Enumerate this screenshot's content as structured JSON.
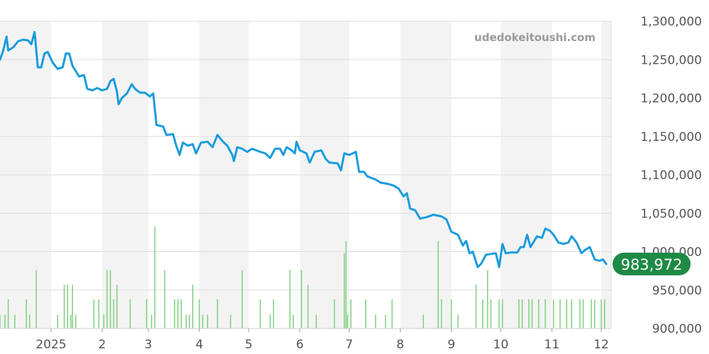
{
  "watermark": "udedokeitoushi.com",
  "current_price_label": "983,972",
  "colors": {
    "line": "#1a9bdc",
    "volume": "#7fcf7f",
    "badge": "#1d8a45",
    "band": "#f3f3f3",
    "grid": "#dddddd"
  },
  "chart_data": {
    "type": "line",
    "title": "",
    "xlabel": "",
    "ylabel": "",
    "ylim": [
      900000,
      1300000
    ],
    "y_ticks": [
      "1,300,000",
      "1,250,000",
      "1,200,000",
      "1,150,000",
      "1,100,000",
      "1,050,000",
      "1,000,000",
      "950,000",
      "900,000"
    ],
    "y_tick_values": [
      1300000,
      1250000,
      1200000,
      1150000,
      1100000,
      1050000,
      1000000,
      950000,
      900000
    ],
    "x_ticks": [
      "2025",
      "2",
      "3",
      "4",
      "5",
      "6",
      "7",
      "8",
      "9",
      "10",
      "11",
      "12"
    ],
    "x_tick_dates": [
      "2025-01-01",
      "2025-02-01",
      "2025-03-01",
      "2025-04-01",
      "2025-05-01",
      "2025-06-01",
      "2025-07-01",
      "2025-08-01",
      "2025-09-01",
      "2025-10-01",
      "2025-11-01",
      "2025-12-01"
    ],
    "x_range": [
      "2024-12-01",
      "2025-12-07"
    ],
    "month_bands": true,
    "grid": true,
    "series": [
      {
        "values": [
          [
            "2024-12-01",
            1250000
          ],
          [
            "2024-12-03",
            1262000
          ],
          [
            "2024-12-05",
            1280000
          ],
          [
            "2024-12-06",
            1262000
          ],
          [
            "2024-12-09",
            1266000
          ],
          [
            "2024-12-12",
            1274000
          ],
          [
            "2024-12-15",
            1276000
          ],
          [
            "2024-12-18",
            1275000
          ],
          [
            "2024-12-20",
            1270000
          ],
          [
            "2024-12-22",
            1286000
          ],
          [
            "2024-12-24",
            1240000
          ],
          [
            "2024-12-26",
            1240000
          ],
          [
            "2024-12-28",
            1258000
          ],
          [
            "2024-12-30",
            1260000
          ],
          [
            "2025-01-02",
            1246000
          ],
          [
            "2025-01-05",
            1238000
          ],
          [
            "2025-01-08",
            1240000
          ],
          [
            "2025-01-10",
            1258000
          ],
          [
            "2025-01-12",
            1258000
          ],
          [
            "2025-01-14",
            1242000
          ],
          [
            "2025-01-16",
            1235000
          ],
          [
            "2025-01-18",
            1228000
          ],
          [
            "2025-01-21",
            1230000
          ],
          [
            "2025-01-23",
            1212000
          ],
          [
            "2025-01-26",
            1210000
          ],
          [
            "2025-01-29",
            1213000
          ],
          [
            "2025-02-01",
            1210000
          ],
          [
            "2025-02-04",
            1212000
          ],
          [
            "2025-02-06",
            1222000
          ],
          [
            "2025-02-08",
            1225000
          ],
          [
            "2025-02-10",
            1208000
          ],
          [
            "2025-02-11",
            1192000
          ],
          [
            "2025-02-13",
            1200000
          ],
          [
            "2025-02-16",
            1206000
          ],
          [
            "2025-02-19",
            1218000
          ],
          [
            "2025-02-21",
            1212000
          ],
          [
            "2025-02-24",
            1207000
          ],
          [
            "2025-02-27",
            1207000
          ],
          [
            "2025-03-02",
            1202000
          ],
          [
            "2025-03-04",
            1206000
          ],
          [
            "2025-03-06",
            1165000
          ],
          [
            "2025-03-10",
            1163000
          ],
          [
            "2025-03-12",
            1152000
          ],
          [
            "2025-03-16",
            1153000
          ],
          [
            "2025-03-18",
            1138000
          ],
          [
            "2025-03-20",
            1126000
          ],
          [
            "2025-03-22",
            1142000
          ],
          [
            "2025-03-25",
            1138000
          ],
          [
            "2025-03-28",
            1140000
          ],
          [
            "2025-03-30",
            1128000
          ],
          [
            "2025-04-02",
            1142000
          ],
          [
            "2025-04-06",
            1143000
          ],
          [
            "2025-04-09",
            1136000
          ],
          [
            "2025-04-12",
            1152000
          ],
          [
            "2025-04-15",
            1144000
          ],
          [
            "2025-04-18",
            1138000
          ],
          [
            "2025-04-21",
            1126000
          ],
          [
            "2025-04-22",
            1118000
          ],
          [
            "2025-04-24",
            1136000
          ],
          [
            "2025-04-27",
            1134000
          ],
          [
            "2025-04-30",
            1130000
          ],
          [
            "2025-05-03",
            1134000
          ],
          [
            "2025-05-08",
            1130000
          ],
          [
            "2025-05-11",
            1128000
          ],
          [
            "2025-05-14",
            1122000
          ],
          [
            "2025-05-17",
            1134000
          ],
          [
            "2025-05-20",
            1134000
          ],
          [
            "2025-05-22",
            1126000
          ],
          [
            "2025-05-24",
            1136000
          ],
          [
            "2025-05-27",
            1132000
          ],
          [
            "2025-05-29",
            1128000
          ],
          [
            "2025-05-30",
            1143000
          ],
          [
            "2025-06-01",
            1132000
          ],
          [
            "2025-06-05",
            1128000
          ],
          [
            "2025-06-07",
            1116000
          ],
          [
            "2025-06-10",
            1130000
          ],
          [
            "2025-06-14",
            1132000
          ],
          [
            "2025-06-17",
            1120000
          ],
          [
            "2025-06-19",
            1116000
          ],
          [
            "2025-06-24",
            1115000
          ],
          [
            "2025-06-26",
            1106000
          ],
          [
            "2025-06-28",
            1128000
          ],
          [
            "2025-07-01",
            1126000
          ],
          [
            "2025-07-05",
            1130000
          ],
          [
            "2025-07-07",
            1104000
          ],
          [
            "2025-07-10",
            1104000
          ],
          [
            "2025-07-12",
            1098000
          ],
          [
            "2025-07-17",
            1094000
          ],
          [
            "2025-07-20",
            1090000
          ],
          [
            "2025-07-25",
            1088000
          ],
          [
            "2025-07-28",
            1086000
          ],
          [
            "2025-07-31",
            1082000
          ],
          [
            "2025-08-03",
            1072000
          ],
          [
            "2025-08-05",
            1076000
          ],
          [
            "2025-08-07",
            1056000
          ],
          [
            "2025-08-10",
            1054000
          ],
          [
            "2025-08-13",
            1043000
          ],
          [
            "2025-08-17",
            1045000
          ],
          [
            "2025-08-21",
            1048000
          ],
          [
            "2025-08-26",
            1046000
          ],
          [
            "2025-08-29",
            1042000
          ],
          [
            "2025-09-01",
            1026000
          ],
          [
            "2025-09-05",
            1022000
          ],
          [
            "2025-09-08",
            1008000
          ],
          [
            "2025-09-10",
            1014000
          ],
          [
            "2025-09-12",
            998000
          ],
          [
            "2025-09-14",
            1000000
          ],
          [
            "2025-09-17",
            980000
          ],
          [
            "2025-09-19",
            984000
          ],
          [
            "2025-09-22",
            996000
          ],
          [
            "2025-09-28",
            998000
          ],
          [
            "2025-09-30",
            980000
          ],
          [
            "2025-10-02",
            1010000
          ],
          [
            "2025-10-04",
            998000
          ],
          [
            "2025-10-07",
            999000
          ],
          [
            "2025-10-11",
            999000
          ],
          [
            "2025-10-13",
            1006000
          ],
          [
            "2025-10-15",
            1006000
          ],
          [
            "2025-10-17",
            1022000
          ],
          [
            "2025-10-19",
            1006000
          ],
          [
            "2025-10-23",
            1020000
          ],
          [
            "2025-10-26",
            1018000
          ],
          [
            "2025-10-28",
            1030000
          ],
          [
            "2025-10-31",
            1027000
          ],
          [
            "2025-11-02",
            1022000
          ],
          [
            "2025-11-05",
            1012000
          ],
          [
            "2025-11-08",
            1010000
          ],
          [
            "2025-11-11",
            1012000
          ],
          [
            "2025-11-13",
            1020000
          ],
          [
            "2025-11-16",
            1012000
          ],
          [
            "2025-11-19",
            998000
          ],
          [
            "2025-11-21",
            1002000
          ],
          [
            "2025-11-24",
            1006000
          ],
          [
            "2025-11-27",
            990000
          ],
          [
            "2025-11-30",
            988000
          ],
          [
            "2025-12-02",
            990000
          ],
          [
            "2025-12-04",
            983972
          ]
        ]
      }
    ],
    "volume": {
      "type": "bar",
      "bottom_value": 900000,
      "bars": [
        [
          "2024-12-01",
          918000
        ],
        [
          "2024-12-04",
          918000
        ],
        [
          "2024-12-06",
          938000
        ],
        [
          "2024-12-10",
          918000
        ],
        [
          "2024-12-17",
          938000
        ],
        [
          "2024-12-19",
          918000
        ],
        [
          "2024-12-23",
          976000
        ],
        [
          "2025-01-05",
          918000
        ],
        [
          "2025-01-09",
          957000
        ],
        [
          "2025-01-11",
          957000
        ],
        [
          "2025-01-13",
          918000
        ],
        [
          "2025-01-14",
          957000
        ],
        [
          "2025-01-16",
          918000
        ],
        [
          "2025-01-27",
          938000
        ],
        [
          "2025-01-30",
          938000
        ],
        [
          "2025-02-02",
          918000
        ],
        [
          "2025-02-04",
          976000
        ],
        [
          "2025-02-06",
          976000
        ],
        [
          "2025-02-08",
          938000
        ],
        [
          "2025-02-10",
          957000
        ],
        [
          "2025-02-18",
          938000
        ],
        [
          "2025-02-28",
          938000
        ],
        [
          "2025-03-03",
          918000
        ],
        [
          "2025-03-05",
          1033000
        ],
        [
          "2025-03-11",
          976000
        ],
        [
          "2025-03-17",
          938000
        ],
        [
          "2025-03-19",
          938000
        ],
        [
          "2025-03-21",
          938000
        ],
        [
          "2025-03-24",
          918000
        ],
        [
          "2025-03-26",
          918000
        ],
        [
          "2025-03-28",
          957000
        ],
        [
          "2025-04-01",
          938000
        ],
        [
          "2025-04-03",
          918000
        ],
        [
          "2025-04-06",
          918000
        ],
        [
          "2025-04-12",
          938000
        ],
        [
          "2025-04-20",
          918000
        ],
        [
          "2025-04-27",
          976000
        ],
        [
          "2025-05-08",
          938000
        ],
        [
          "2025-05-14",
          918000
        ],
        [
          "2025-05-16",
          938000
        ],
        [
          "2025-05-26",
          976000
        ],
        [
          "2025-05-28",
          918000
        ],
        [
          "2025-06-02",
          976000
        ],
        [
          "2025-06-06",
          957000
        ],
        [
          "2025-06-11",
          918000
        ],
        [
          "2025-06-22",
          938000
        ],
        [
          "2025-06-28",
          998000
        ],
        [
          "2025-06-29",
          1014000
        ],
        [
          "2025-06-30",
          918000
        ],
        [
          "2025-07-02",
          938000
        ],
        [
          "2025-07-11",
          938000
        ],
        [
          "2025-07-17",
          918000
        ],
        [
          "2025-07-23",
          918000
        ],
        [
          "2025-07-27",
          938000
        ],
        [
          "2025-08-15",
          918000
        ],
        [
          "2025-08-24",
          1014000
        ],
        [
          "2025-08-26",
          938000
        ],
        [
          "2025-09-01",
          938000
        ],
        [
          "2025-09-05",
          918000
        ],
        [
          "2025-09-16",
          957000
        ],
        [
          "2025-09-20",
          938000
        ],
        [
          "2025-09-23",
          976000
        ],
        [
          "2025-09-25",
          938000
        ],
        [
          "2025-09-30",
          938000
        ],
        [
          "2025-10-02",
          938000
        ],
        [
          "2025-10-12",
          938000
        ],
        [
          "2025-10-14",
          938000
        ],
        [
          "2025-10-18",
          938000
        ],
        [
          "2025-10-20",
          938000
        ],
        [
          "2025-10-24",
          938000
        ],
        [
          "2025-10-28",
          938000
        ],
        [
          "2025-11-02",
          938000
        ],
        [
          "2025-11-06",
          938000
        ],
        [
          "2025-11-10",
          938000
        ],
        [
          "2025-11-13",
          938000
        ],
        [
          "2025-11-18",
          938000
        ],
        [
          "2025-11-20",
          938000
        ],
        [
          "2025-11-25",
          938000
        ],
        [
          "2025-11-27",
          938000
        ],
        [
          "2025-12-01",
          938000
        ],
        [
          "2025-12-03",
          938000
        ]
      ]
    }
  }
}
